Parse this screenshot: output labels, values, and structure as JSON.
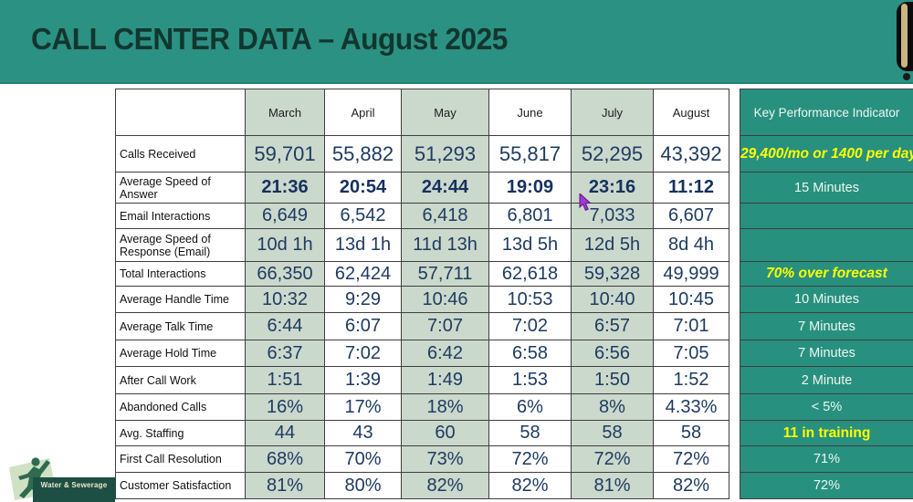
{
  "header": {
    "title": "CALL CENTER DATA – August 2025"
  },
  "table": {
    "months": [
      "March",
      "April",
      "May",
      "June",
      "July",
      "August"
    ],
    "kpi_header": "Key Performance Indicator",
    "rows": [
      {
        "label": "Calls Received",
        "values": [
          "59,701",
          "55,882",
          "51,293",
          "55,817",
          "52,295",
          "43,392"
        ],
        "kpi": "29,400/mo or 1400 per day",
        "kpi_highlight": "yellow-italic"
      },
      {
        "label": "Average Speed of Answer",
        "values": [
          "21:36",
          "20:54",
          "24:44",
          "19:09",
          "23:16",
          "11:12"
        ],
        "kpi": "15 Minutes",
        "bold": true
      },
      {
        "label": "Email Interactions",
        "values": [
          "6,649",
          "6,542",
          "6,418",
          "6,801",
          "7,033",
          "6,607"
        ],
        "kpi": ""
      },
      {
        "label": "Average Speed of Response (Email)",
        "values": [
          "10d 1h",
          "13d 1h",
          "11d 13h",
          "13d 5h",
          "12d 5h",
          "8d 4h"
        ],
        "kpi": ""
      },
      {
        "label": "Total Interactions",
        "values": [
          "66,350",
          "62,424",
          "57,711",
          "62,618",
          "59,328",
          "49,999"
        ],
        "kpi": "70% over forecast",
        "kpi_highlight": "yellow-italic"
      },
      {
        "label": "Average Handle Time",
        "values": [
          "10:32",
          "9:29",
          "10:46",
          "10:53",
          "10:40",
          "10:45"
        ],
        "kpi": "10 Minutes"
      },
      {
        "label": "Average Talk Time",
        "values": [
          "6:44",
          "6:07",
          "7:07",
          "7:02",
          "6:57",
          "7:01"
        ],
        "kpi": "7 Minutes"
      },
      {
        "label": "Average Hold Time",
        "values": [
          "6:37",
          "7:02",
          "6:42",
          "6:58",
          "6:56",
          "7:05"
        ],
        "kpi": "7 Minutes"
      },
      {
        "label": "After Call Work",
        "values": [
          "1:51",
          "1:39",
          "1:49",
          "1:53",
          "1:50",
          "1:52"
        ],
        "kpi": "2 Minute"
      },
      {
        "label": "Abandoned Calls",
        "values": [
          "16%",
          "17%",
          "18%",
          "6%",
          "8%",
          "4.33%"
        ],
        "kpi": "< 5%"
      },
      {
        "label": "Avg. Staffing",
        "values": [
          "44",
          "43",
          "60",
          "58",
          "58",
          "58"
        ],
        "kpi": "11 in training",
        "kpi_highlight": "yellow-bold"
      },
      {
        "label": "First Call Resolution",
        "values": [
          "68%",
          "70%",
          "73%",
          "72%",
          "72%",
          "72%"
        ],
        "kpi": "71%"
      },
      {
        "label": "Customer Satisfaction",
        "values": [
          "81%",
          "80%",
          "82%",
          "82%",
          "81%",
          "82%"
        ],
        "kpi": "72%"
      }
    ]
  },
  "logo": {
    "banner_text": "Water & Sewerage"
  },
  "cursor": {
    "type": "arrow-pointer"
  },
  "colors": {
    "band_teal": "#2b9183",
    "kpi_teal": "#28907e",
    "column_sage": "#cbd8cc",
    "value_text": "#1f3b60",
    "kpi_yellow": "#ffff00",
    "title_text": "#12362f"
  }
}
